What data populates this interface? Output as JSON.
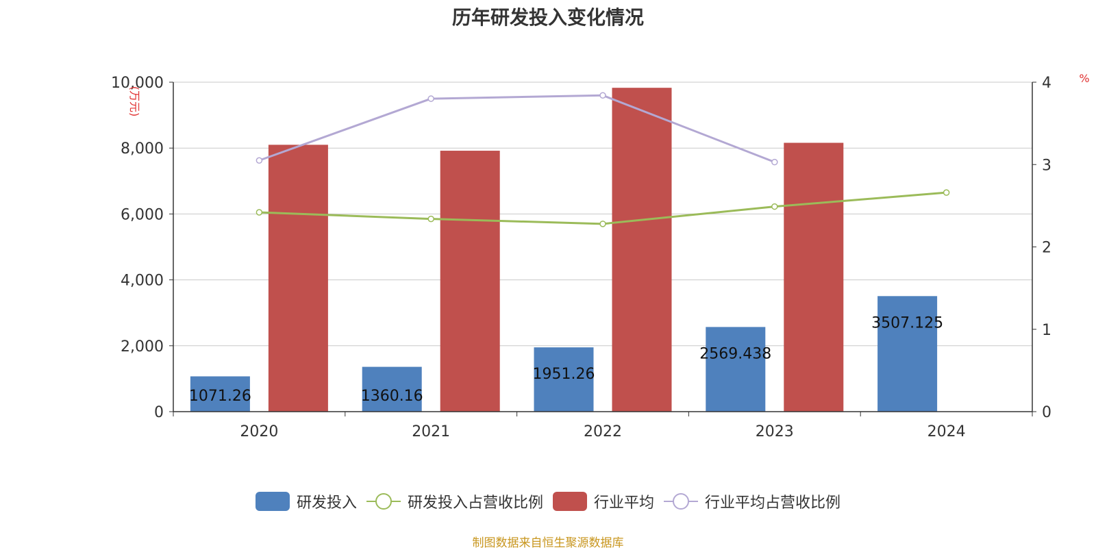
{
  "title": "历年研发投入变化情况",
  "source": "制图数据来自恒生聚源数据库",
  "colors": {
    "rd_bar": "#4f81bd",
    "industry_bar": "#c0504d",
    "rd_ratio_line": "#9bbb59",
    "industry_ratio_line": "#b3a8d3",
    "axis_unit_text": "#e03030",
    "source_text": "#c8961e"
  },
  "chart_data": {
    "type": "bar",
    "categories": [
      "2020",
      "2021",
      "2022",
      "2023",
      "2024"
    ],
    "y_left": {
      "label": "(万元)",
      "ylim": [
        0,
        10000
      ],
      "ticks": [
        "0",
        "2,000",
        "4,000",
        "6,000",
        "8,000",
        "10,000"
      ]
    },
    "y_right": {
      "label": "%",
      "ylim": [
        0,
        4
      ],
      "ticks": [
        "0",
        "1",
        "2",
        "3",
        "4"
      ]
    },
    "grid": true,
    "legend_position": "bottom",
    "series": [
      {
        "name": "研发投入",
        "type": "bar",
        "axis": "left",
        "color": "#4f81bd",
        "values": [
          1071.26,
          1360.16,
          1951.26,
          2569.438,
          3507.125
        ],
        "labels": [
          "1071.26",
          "1360.16",
          "1951.26",
          "2569.438",
          "3507.125"
        ]
      },
      {
        "name": "研发投入占营收比例",
        "type": "line",
        "axis": "right",
        "color": "#9bbb59",
        "values": [
          2.42,
          2.34,
          2.28,
          2.49,
          2.66
        ]
      },
      {
        "name": "行业平均",
        "type": "bar",
        "axis": "left",
        "color": "#c0504d",
        "values": [
          8100,
          7920,
          9830,
          8160,
          null
        ]
      },
      {
        "name": "行业平均占营收比例",
        "type": "line",
        "axis": "right",
        "color": "#b3a8d3",
        "values": [
          3.05,
          3.8,
          3.84,
          3.03,
          null
        ]
      }
    ]
  }
}
